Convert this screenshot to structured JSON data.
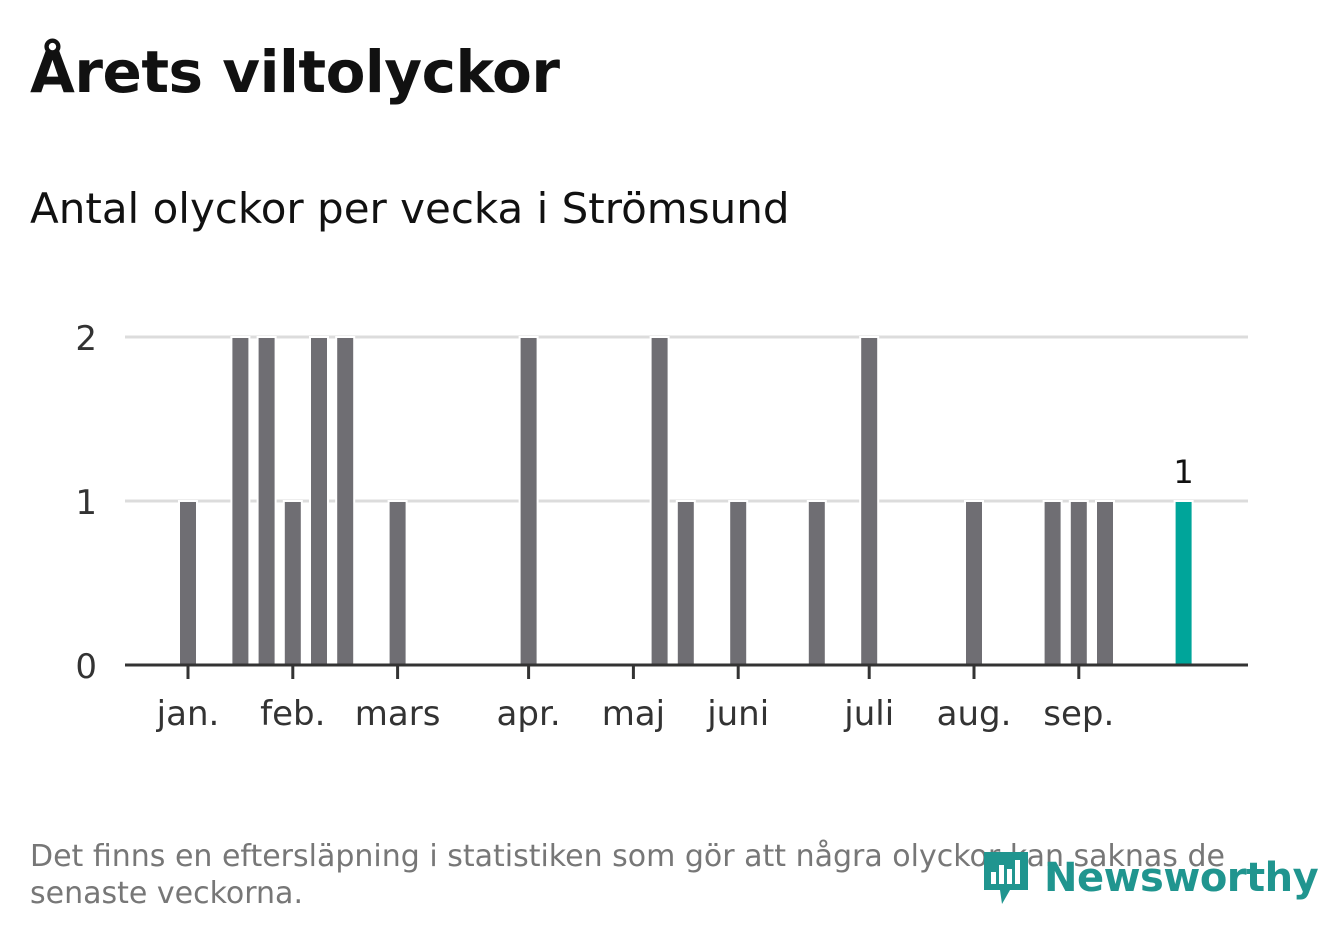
{
  "title": "Årets viltolyckor",
  "subtitle": "Antal olyckor per vecka i Strömsund",
  "footnote": "Det finns en eftersläpning i statistiken som gör att några olyckor kan saknas de senaste veckorna.",
  "brand": {
    "name": "Newsworthy",
    "icon": "bar-chart-speech-bubble-icon",
    "color": "#20958f"
  },
  "chart_data": {
    "type": "bar",
    "x_label": "",
    "y_label": "",
    "ylim": [
      0,
      2
    ],
    "yticks": [
      0,
      1,
      2
    ],
    "grid": true,
    "legend": "none",
    "bar_color": "#6f6e73",
    "highlight_color": "#00a59a",
    "x": [
      1,
      2,
      3,
      4,
      5,
      6,
      7,
      8,
      9,
      10,
      11,
      12,
      13,
      14,
      15,
      16,
      17,
      18,
      19,
      20,
      21,
      22,
      23,
      24,
      25,
      26,
      27,
      28,
      29,
      30,
      31,
      32,
      33,
      34,
      35,
      36,
      37,
      38,
      39,
      40,
      41
    ],
    "values": [
      0,
      0,
      1,
      0,
      2,
      2,
      1,
      2,
      2,
      0,
      1,
      0,
      0,
      0,
      0,
      2,
      0,
      0,
      0,
      0,
      2,
      1,
      0,
      1,
      0,
      0,
      1,
      0,
      2,
      0,
      0,
      0,
      1,
      0,
      0,
      1,
      1,
      1,
      0,
      0,
      1
    ],
    "highlight_index": 40,
    "highlight_label": "1",
    "month_ticks": [
      {
        "label": "jan.",
        "week": 3
      },
      {
        "label": "feb.",
        "week": 7
      },
      {
        "label": "mars",
        "week": 11
      },
      {
        "label": "apr.",
        "week": 16
      },
      {
        "label": "maj",
        "week": 20
      },
      {
        "label": "juni",
        "week": 24
      },
      {
        "label": "juli",
        "week": 29
      },
      {
        "label": "aug.",
        "week": 33
      },
      {
        "label": "sep.",
        "week": 37
      }
    ]
  }
}
